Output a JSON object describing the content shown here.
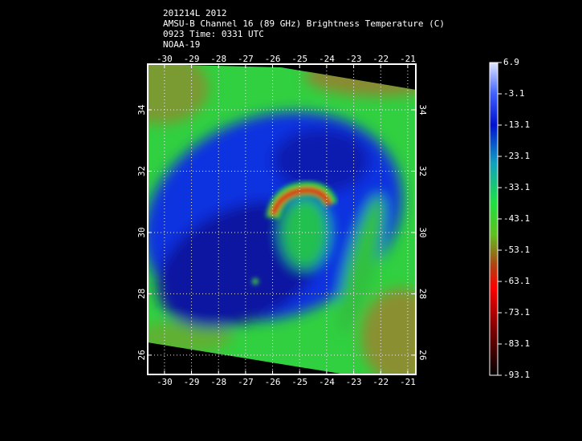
{
  "header": {
    "lines": [
      "201214L 2012",
      "AMSU-B Channel 16 (89 GHz) Brightness Temperature (C)",
      "0923 Time: 0331 UTC",
      "NOAA-19"
    ]
  },
  "map": {
    "lonlim": [
      -30.62,
      -20.7
    ],
    "latlim": [
      25.37,
      35.49
    ],
    "lon_ticks": [
      -30,
      -29,
      -28,
      -27,
      -26,
      -25,
      -24,
      -23,
      -22,
      -21
    ],
    "lat_ticks": [
      26,
      28,
      30,
      32,
      34
    ]
  },
  "colorbar": {
    "range": [
      -93.1,
      6.9
    ],
    "ticks": [
      6.9,
      -3.1,
      -13.1,
      -23.1,
      -33.1,
      -43.1,
      -53.1,
      -63.1,
      -73.1,
      -83.1,
      -93.1
    ]
  }
}
